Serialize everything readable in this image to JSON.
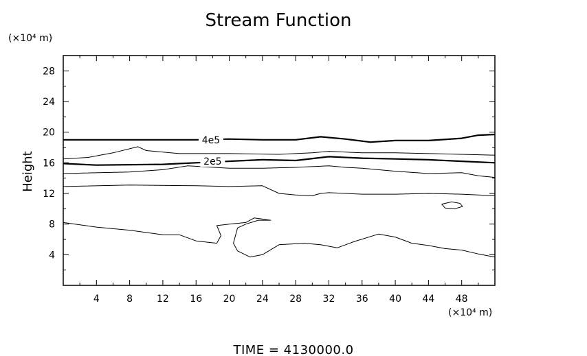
{
  "chart_data": {
    "type": "contour",
    "title": "Stream Function",
    "ylabel": "Height",
    "yunit": "(×10⁴ m)",
    "xunit": "(×10⁴ m)",
    "footer": "TIME  =  4130000.0",
    "xlim": [
      0,
      52
    ],
    "ylim": [
      0,
      30
    ],
    "xticks": [
      4,
      8,
      12,
      16,
      20,
      24,
      28,
      32,
      36,
      40,
      44,
      48
    ],
    "yticks": [
      4,
      8,
      12,
      16,
      20,
      24,
      28
    ],
    "grid": false,
    "contours": [
      {
        "level": "4e5",
        "labeled": true,
        "thick": true,
        "label_at": [
          17.8,
          19.0
        ],
        "points": [
          [
            0,
            19.0
          ],
          [
            8,
            19.0
          ],
          [
            16,
            19.0
          ],
          [
            20,
            19.1
          ],
          [
            24,
            19.0
          ],
          [
            28,
            19.0
          ],
          [
            31,
            19.4
          ],
          [
            34,
            19.1
          ],
          [
            37,
            18.7
          ],
          [
            40,
            18.9
          ],
          [
            44,
            18.9
          ],
          [
            48,
            19.2
          ],
          [
            50,
            19.6
          ],
          [
            52,
            19.7
          ]
        ]
      },
      {
        "level": "",
        "labeled": false,
        "thick": false,
        "points": [
          [
            0,
            16.5
          ],
          [
            3,
            16.7
          ],
          [
            6,
            17.3
          ],
          [
            9,
            18.1
          ],
          [
            10,
            17.6
          ],
          [
            14,
            17.2
          ],
          [
            20,
            17.2
          ],
          [
            26,
            17.1
          ],
          [
            30,
            17.3
          ],
          [
            32,
            17.5
          ],
          [
            36,
            17.3
          ],
          [
            40,
            17.3
          ],
          [
            44,
            17.2
          ],
          [
            48,
            17.1
          ],
          [
            52,
            17.0
          ]
        ]
      },
      {
        "level": "2e5",
        "labeled": true,
        "thick": true,
        "label_at": [
          18.0,
          16.2
        ],
        "points": [
          [
            0,
            15.9
          ],
          [
            4,
            15.7
          ],
          [
            12,
            15.8
          ],
          [
            16,
            16.0
          ],
          [
            24,
            16.4
          ],
          [
            28,
            16.3
          ],
          [
            32,
            16.8
          ],
          [
            36,
            16.6
          ],
          [
            40,
            16.5
          ],
          [
            44,
            16.4
          ],
          [
            48,
            16.2
          ],
          [
            52,
            16.0
          ]
        ]
      },
      {
        "level": "",
        "labeled": false,
        "thick": false,
        "points": [
          [
            0,
            14.6
          ],
          [
            8,
            14.8
          ],
          [
            12,
            15.1
          ],
          [
            15,
            15.6
          ],
          [
            20,
            15.3
          ],
          [
            24,
            15.3
          ],
          [
            28,
            15.4
          ],
          [
            32,
            15.6
          ],
          [
            34,
            15.4
          ],
          [
            36,
            15.3
          ],
          [
            40,
            14.9
          ],
          [
            44,
            14.6
          ],
          [
            48,
            14.7
          ],
          [
            50,
            14.3
          ],
          [
            52,
            14.1
          ]
        ]
      },
      {
        "level": "",
        "labeled": false,
        "thick": false,
        "points": [
          [
            0,
            12.9
          ],
          [
            8,
            13.1
          ],
          [
            16,
            13.0
          ],
          [
            20,
            12.9
          ],
          [
            24,
            13.0
          ],
          [
            26,
            12.0
          ],
          [
            28,
            11.8
          ],
          [
            30,
            11.7
          ],
          [
            31,
            12.0
          ],
          [
            32,
            12.1
          ],
          [
            36,
            11.9
          ],
          [
            40,
            11.9
          ],
          [
            44,
            12.0
          ],
          [
            48,
            11.9
          ],
          [
            52,
            11.7
          ]
        ]
      },
      {
        "level": "",
        "labeled": false,
        "thick": false,
        "closed": true,
        "points": [
          [
            45.6,
            10.6
          ],
          [
            46.8,
            10.9
          ],
          [
            47.8,
            10.7
          ],
          [
            48.1,
            10.3
          ],
          [
            47.2,
            10.0
          ],
          [
            46.0,
            10.1
          ],
          [
            45.6,
            10.6
          ]
        ]
      },
      {
        "level": "",
        "labeled": false,
        "thick": false,
        "points": [
          [
            0,
            8.2
          ],
          [
            4,
            7.6
          ],
          [
            8,
            7.2
          ],
          [
            12,
            6.6
          ],
          [
            14,
            6.6
          ],
          [
            16,
            5.8
          ],
          [
            18.5,
            5.5
          ],
          [
            19.0,
            6.5
          ],
          [
            18.5,
            7.8
          ],
          [
            20,
            8.0
          ],
          [
            22,
            8.2
          ],
          [
            23,
            8.8
          ],
          [
            25,
            8.5
          ],
          [
            23.5,
            8.5
          ],
          [
            22,
            8.0
          ],
          [
            21,
            7.5
          ],
          [
            20.5,
            5.5
          ],
          [
            21,
            4.5
          ],
          [
            22.5,
            3.7
          ],
          [
            24,
            4.0
          ],
          [
            26,
            5.3
          ],
          [
            29,
            5.5
          ],
          [
            31,
            5.3
          ],
          [
            33,
            4.9
          ],
          [
            35,
            5.7
          ],
          [
            38,
            6.7
          ],
          [
            40,
            6.3
          ],
          [
            42,
            5.5
          ],
          [
            44,
            5.2
          ],
          [
            46,
            4.8
          ],
          [
            48,
            4.6
          ],
          [
            50,
            4.1
          ],
          [
            52,
            3.7
          ]
        ]
      }
    ]
  }
}
